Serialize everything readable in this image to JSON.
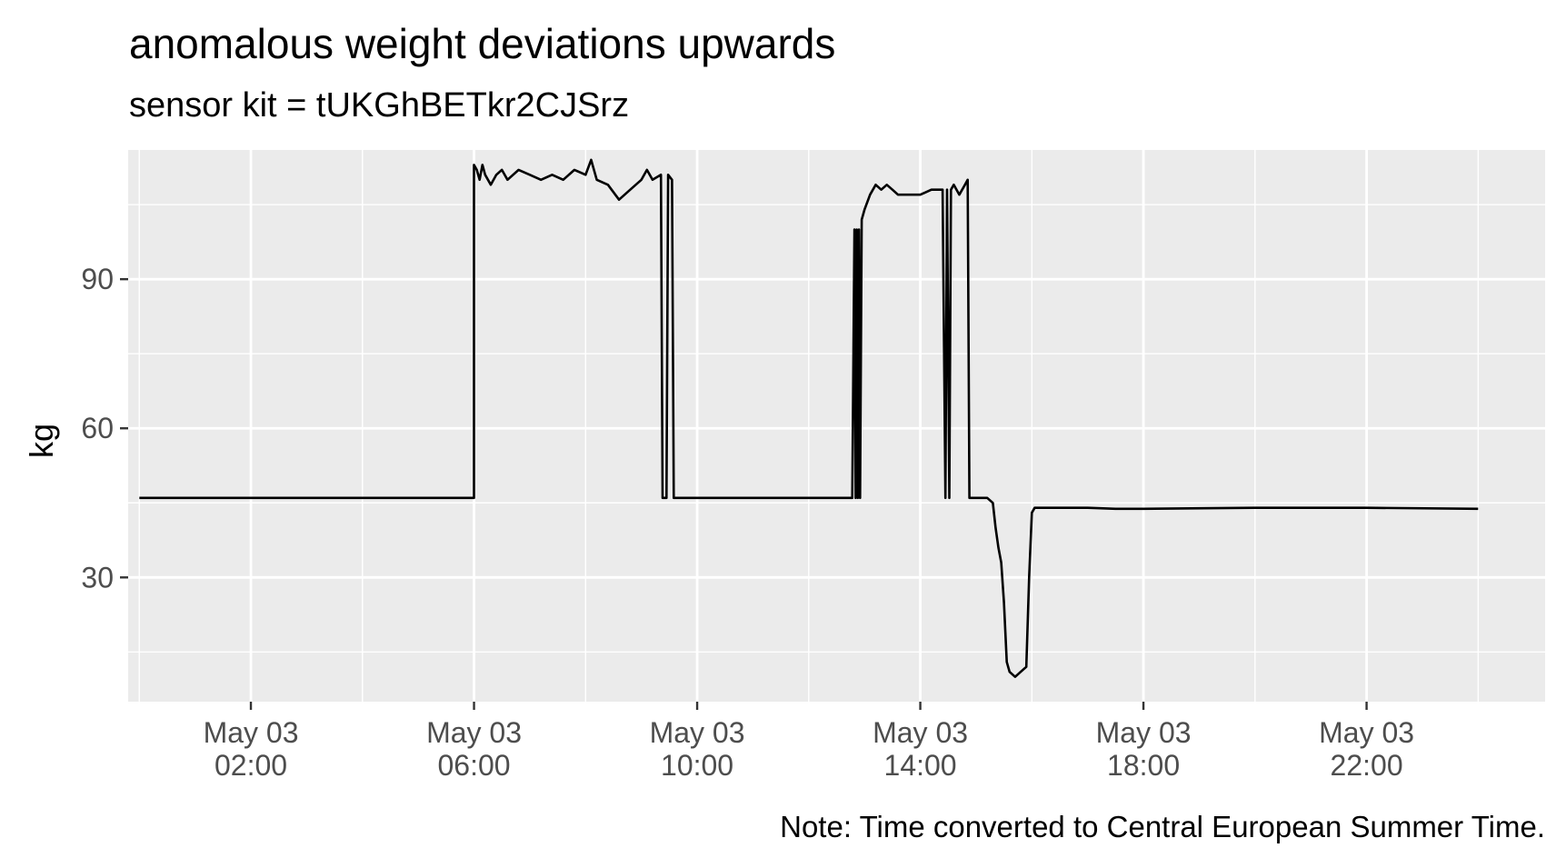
{
  "chart_data": {
    "type": "line",
    "title": "anomalous weight deviations upwards",
    "subtitle": "sensor kit = tUKGhBETkr2CJSrz",
    "xlabel": "",
    "ylabel": "kg",
    "caption": "Note: Time converted to Central European Summer Time.",
    "x_unit": "hours of day (May 03)",
    "xlim": [
      -0.2,
      25.2
    ],
    "ylim": [
      5,
      116
    ],
    "x_ticks": [
      {
        "value": 2,
        "label": [
          "May 03",
          "02:00"
        ]
      },
      {
        "value": 6,
        "label": [
          "May 03",
          "06:00"
        ]
      },
      {
        "value": 10,
        "label": [
          "May 03",
          "10:00"
        ]
      },
      {
        "value": 14,
        "label": [
          "May 03",
          "14:00"
        ]
      },
      {
        "value": 18,
        "label": [
          "May 03",
          "18:00"
        ]
      },
      {
        "value": 22,
        "label": [
          "May 03",
          "22:00"
        ]
      }
    ],
    "y_ticks": [
      30,
      60,
      90
    ],
    "grid": true,
    "series": [
      {
        "name": "",
        "color": "#000000",
        "x": [
          0.0,
          6.0,
          6.0,
          6.05,
          6.1,
          6.15,
          6.2,
          6.3,
          6.4,
          6.5,
          6.6,
          6.8,
          7.0,
          7.2,
          7.4,
          7.6,
          7.8,
          8.0,
          8.1,
          8.2,
          8.4,
          8.6,
          8.8,
          9.0,
          9.1,
          9.2,
          9.35,
          9.38,
          9.45,
          9.48,
          9.55,
          9.58,
          9.6,
          10.0,
          11.0,
          12.0,
          12.5,
          12.75,
          12.78,
          12.82,
          12.84,
          12.86,
          12.88,
          12.9,
          12.92,
          12.95,
          13.0,
          13.1,
          13.2,
          13.3,
          13.4,
          13.5,
          13.6,
          13.8,
          14.0,
          14.2,
          14.4,
          14.45,
          14.48,
          14.52,
          14.55,
          14.6,
          14.7,
          14.8,
          14.85,
          14.88,
          15.0,
          15.2,
          15.3,
          15.35,
          15.4,
          15.45,
          15.5,
          15.55,
          15.6,
          15.7,
          15.8,
          15.9,
          15.95,
          16.0,
          16.05,
          16.5,
          17.0,
          17.5,
          18.0,
          20.0,
          22.0,
          24.0
        ],
        "y": [
          46,
          46,
          113,
          112,
          110,
          113,
          111,
          109,
          111,
          112,
          110,
          112,
          111,
          110,
          111,
          110,
          112,
          111,
          114,
          110,
          109,
          106,
          108,
          110,
          112,
          110,
          111,
          46,
          46,
          111,
          110,
          46,
          46,
          46,
          46,
          46,
          46,
          46,
          46,
          100,
          46,
          100,
          46,
          100,
          46,
          102,
          104,
          107,
          109,
          108,
          109,
          108,
          107,
          107,
          107,
          108,
          108,
          46,
          108,
          46,
          108,
          109,
          107,
          109,
          110,
          46,
          46,
          46,
          45,
          40,
          36,
          33,
          25,
          13,
          11,
          10,
          11,
          12,
          30,
          43,
          44,
          44,
          44,
          43.8,
          43.8,
          44,
          44,
          43.8
        ]
      }
    ]
  }
}
